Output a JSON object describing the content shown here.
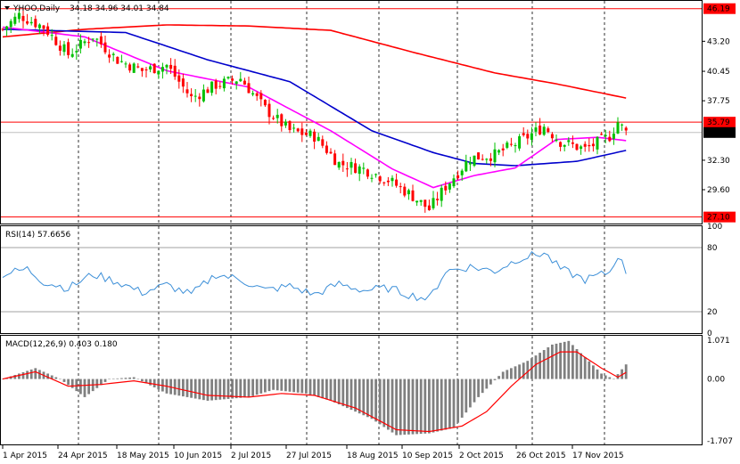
{
  "main_panel": {
    "title": "YHOO,Daily",
    "ohlc": "34.18 34.96 34.01 34.84",
    "price_ticks": [
      "43.20",
      "40.45",
      "37.75",
      "32.30",
      "29.60"
    ],
    "hlines": [
      {
        "value": 46.19,
        "label": "46.19",
        "color": "#ff0000"
      },
      {
        "value": 35.79,
        "label": "35.79",
        "color": "#ff0000"
      },
      {
        "value": 27.1,
        "label": "27.10",
        "color": "#ff0000"
      }
    ],
    "last_price": {
      "value": 34.84,
      "label": "34.84"
    }
  },
  "rsi_panel": {
    "title": "RSI(14) 57.6656",
    "ticks": [
      "100",
      "80",
      "20",
      "0"
    ]
  },
  "macd_panel": {
    "title": "MACD(12,26,9) 0.403 0.180",
    "ticks": [
      "1.071",
      "0.00",
      "-1.707"
    ]
  },
  "x_labels": [
    "1 Apr 2015",
    "24 Apr 2015",
    "18 May 2015",
    "10 Jun 2015",
    "2 Jul 2015",
    "27 Jul 2015",
    "18 Aug 2015",
    "10 Sep 2015",
    "2 Oct 2015",
    "26 Oct 2015",
    "17 Nov 2015"
  ],
  "colors": {
    "bull": "#00c000",
    "bear": "#ff0000",
    "ma_fast": "#ff00ff",
    "ma_mid": "#0000cc",
    "ma_slow": "#ff0000",
    "rsi": "#3c8fd8",
    "macd_hist": "#808080",
    "macd_signal": "#ff0000",
    "grid": "#000000"
  },
  "chart_data": {
    "type": "candlestick",
    "symbol": "YHOO",
    "timeframe": "Daily",
    "price_range": [
      26.5,
      46.9
    ],
    "keyframes": [
      {
        "bar": 0,
        "close": 44.3
      },
      {
        "bar": 4,
        "close": 45.6
      },
      {
        "bar": 10,
        "close": 44.5
      },
      {
        "bar": 16,
        "close": 42.0
      },
      {
        "bar": 22,
        "close": 43.7
      },
      {
        "bar": 28,
        "close": 41.5
      },
      {
        "bar": 34,
        "close": 40.5
      },
      {
        "bar": 40,
        "close": 41.0
      },
      {
        "bar": 46,
        "close": 38.0
      },
      {
        "bar": 52,
        "close": 39.2
      },
      {
        "bar": 58,
        "close": 39.8
      },
      {
        "bar": 64,
        "close": 37.0
      },
      {
        "bar": 70,
        "close": 35.0
      },
      {
        "bar": 76,
        "close": 34.5
      },
      {
        "bar": 82,
        "close": 32.0
      },
      {
        "bar": 88,
        "close": 31.5
      },
      {
        "bar": 94,
        "close": 30.5
      },
      {
        "bar": 100,
        "close": 29.0
      },
      {
        "bar": 104,
        "close": 27.8
      },
      {
        "bar": 108,
        "close": 29.9
      },
      {
        "bar": 114,
        "close": 32.5
      },
      {
        "bar": 120,
        "close": 32.8
      },
      {
        "bar": 126,
        "close": 34.0
      },
      {
        "bar": 132,
        "close": 35.4
      },
      {
        "bar": 136,
        "close": 34.0
      },
      {
        "bar": 142,
        "close": 33.3
      },
      {
        "bar": 148,
        "close": 34.5
      },
      {
        "bar": 150,
        "close": 35.8
      },
      {
        "bar": 152,
        "close": 34.84
      }
    ],
    "ma_fast_keyframes": [
      [
        0,
        44.5
      ],
      [
        20,
        43.6
      ],
      [
        40,
        40.5
      ],
      [
        60,
        39.0
      ],
      [
        80,
        35.0
      ],
      [
        95,
        31.5
      ],
      [
        105,
        29.8
      ],
      [
        115,
        30.9
      ],
      [
        125,
        31.6
      ],
      [
        135,
        34.2
      ],
      [
        145,
        34.4
      ],
      [
        152,
        34.1
      ]
    ],
    "ma_mid_keyframes": [
      [
        0,
        44.3
      ],
      [
        30,
        44.0
      ],
      [
        50,
        41.5
      ],
      [
        70,
        39.5
      ],
      [
        90,
        35.0
      ],
      [
        105,
        33.0
      ],
      [
        115,
        32.0
      ],
      [
        125,
        31.8
      ],
      [
        140,
        32.2
      ],
      [
        152,
        33.2
      ]
    ],
    "ma_slow_keyframes": [
      [
        0,
        43.6
      ],
      [
        20,
        44.3
      ],
      [
        40,
        44.7
      ],
      [
        60,
        44.6
      ],
      [
        80,
        44.2
      ],
      [
        100,
        42.2
      ],
      [
        120,
        40.3
      ],
      [
        135,
        39.3
      ],
      [
        152,
        38.0
      ]
    ],
    "rsi_keyframes": [
      [
        0,
        55
      ],
      [
        6,
        60
      ],
      [
        10,
        48
      ],
      [
        16,
        42
      ],
      [
        22,
        55
      ],
      [
        28,
        48
      ],
      [
        34,
        38
      ],
      [
        40,
        45
      ],
      [
        46,
        36
      ],
      [
        52,
        55
      ],
      [
        58,
        50
      ],
      [
        64,
        40
      ],
      [
        70,
        44
      ],
      [
        76,
        36
      ],
      [
        82,
        46
      ],
      [
        88,
        40
      ],
      [
        94,
        42
      ],
      [
        100,
        35
      ],
      [
        104,
        32
      ],
      [
        108,
        58
      ],
      [
        114,
        62
      ],
      [
        120,
        58
      ],
      [
        126,
        70
      ],
      [
        132,
        75
      ],
      [
        136,
        60
      ],
      [
        142,
        50
      ],
      [
        148,
        57
      ],
      [
        150,
        73
      ],
      [
        152,
        57.67
      ]
    ],
    "rsi_range": [
      0,
      100
    ],
    "rsi_levels": [
      80,
      20
    ],
    "macd_range": [
      -1.707,
      1.071
    ],
    "macd_keyframes": [
      [
        0,
        0.0
      ],
      [
        8,
        0.3
      ],
      [
        14,
        0.0
      ],
      [
        20,
        -0.5
      ],
      [
        26,
        0.0
      ],
      [
        32,
        0.05
      ],
      [
        40,
        -0.4
      ],
      [
        50,
        -0.6
      ],
      [
        60,
        -0.5
      ],
      [
        66,
        -0.3
      ],
      [
        74,
        -0.4
      ],
      [
        80,
        -0.6
      ],
      [
        90,
        -1.1
      ],
      [
        96,
        -1.55
      ],
      [
        104,
        -1.5
      ],
      [
        110,
        -1.35
      ],
      [
        116,
        -0.5
      ],
      [
        122,
        0.2
      ],
      [
        128,
        0.5
      ],
      [
        134,
        0.95
      ],
      [
        138,
        1.05
      ],
      [
        142,
        0.6
      ],
      [
        146,
        0.15
      ],
      [
        149,
        0.0
      ],
      [
        152,
        0.403
      ]
    ],
    "macd_signal_keyframes": [
      [
        0,
        0.0
      ],
      [
        8,
        0.2
      ],
      [
        16,
        -0.2
      ],
      [
        24,
        -0.15
      ],
      [
        32,
        -0.05
      ],
      [
        40,
        -0.2
      ],
      [
        50,
        -0.45
      ],
      [
        60,
        -0.5
      ],
      [
        68,
        -0.4
      ],
      [
        76,
        -0.45
      ],
      [
        86,
        -0.8
      ],
      [
        96,
        -1.4
      ],
      [
        104,
        -1.45
      ],
      [
        112,
        -1.3
      ],
      [
        118,
        -0.9
      ],
      [
        124,
        -0.2
      ],
      [
        130,
        0.4
      ],
      [
        136,
        0.75
      ],
      [
        140,
        0.75
      ],
      [
        146,
        0.3
      ],
      [
        150,
        0.05
      ],
      [
        152,
        0.18
      ]
    ]
  }
}
